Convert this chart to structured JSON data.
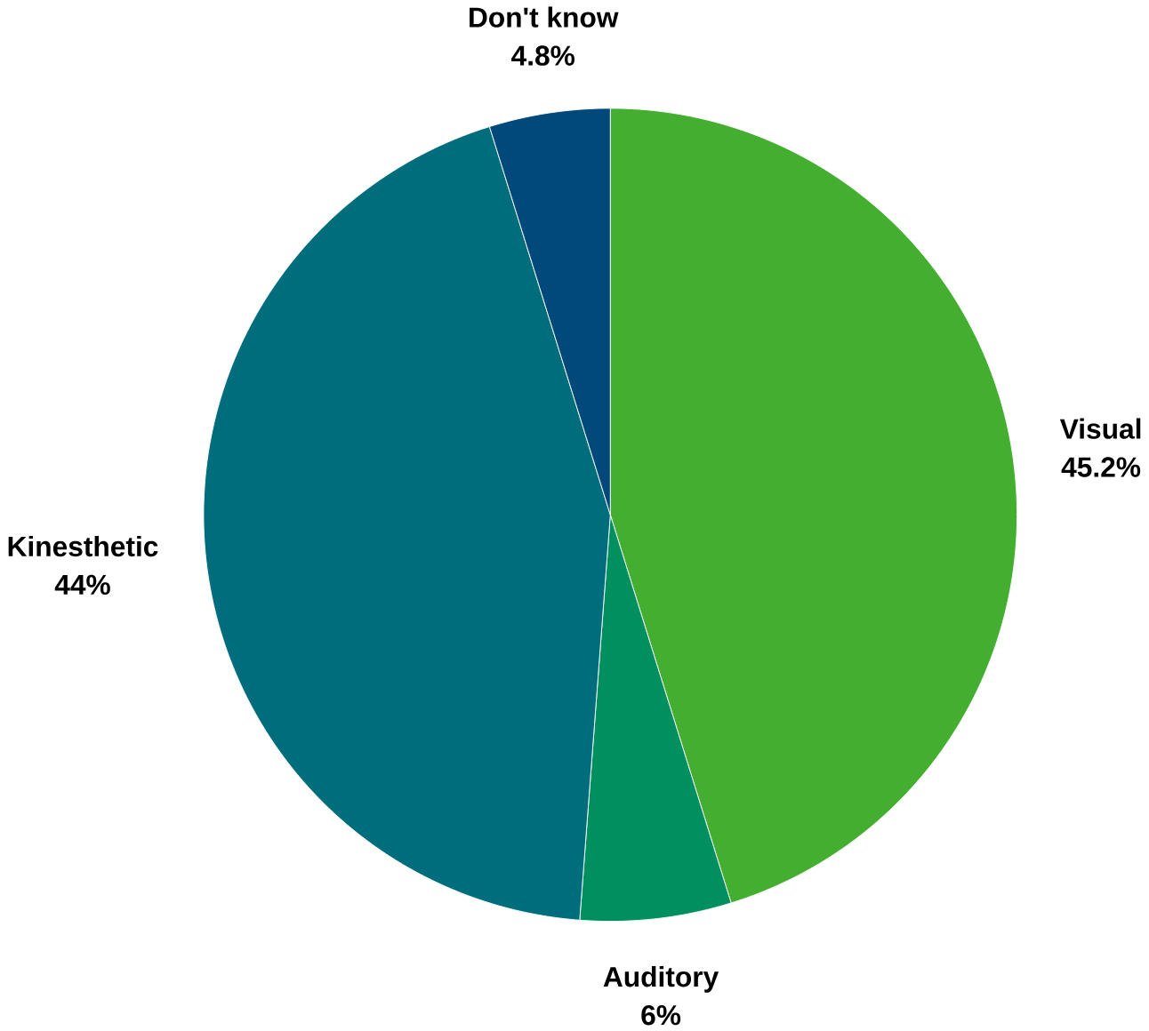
{
  "chart_data": {
    "type": "pie",
    "categories": [
      "Visual",
      "Auditory",
      "Kinesthetic",
      "Don't know"
    ],
    "values": [
      45.2,
      6,
      44,
      4.8
    ],
    "value_labels": [
      "45.2%",
      "6%",
      "44%",
      "4.8%"
    ],
    "colors": [
      "#43ae2f",
      "#00905f",
      "#006d7c",
      "#00497a"
    ]
  }
}
